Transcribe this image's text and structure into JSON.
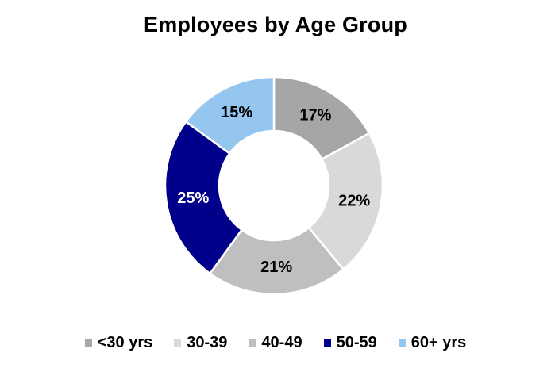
{
  "chart_data": {
    "type": "pie",
    "subtype": "donut",
    "title": "Employees by Age Group",
    "categories": [
      "<30 yrs",
      "30-39",
      "40-49",
      "50-59",
      "60+ yrs"
    ],
    "values": [
      17,
      22,
      21,
      25,
      15
    ],
    "data_labels": [
      "17%",
      "22%",
      "21%",
      "25%",
      "15%"
    ],
    "colors": [
      "#A6A6A6",
      "#D9D9D9",
      "#BFBFBF",
      "#00008B",
      "#94C6F0"
    ],
    "label_colors": [
      "#000000",
      "#000000",
      "#000000",
      "#FFFFFF",
      "#000000"
    ],
    "start_angle_deg": 0,
    "direction": "clockwise",
    "hole_ratio": 0.5,
    "legend_position": "bottom",
    "background": "#FFFFFF"
  }
}
